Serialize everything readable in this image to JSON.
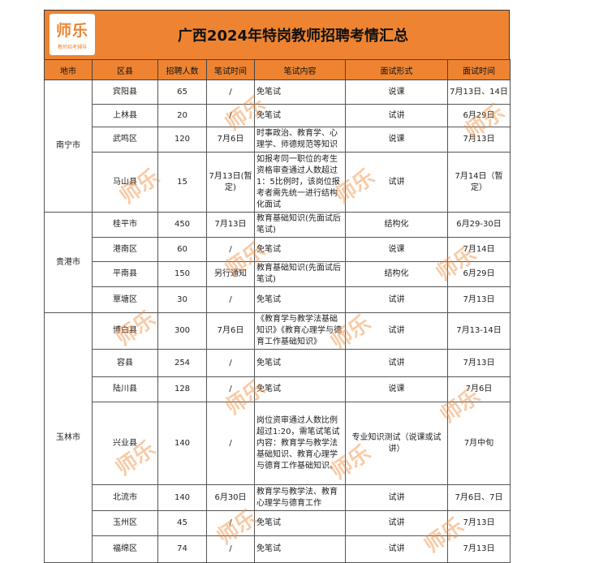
{
  "logo": {
    "name": "师乐",
    "tagline": "教师招考辅导"
  },
  "title": "广西2024年特岗教师招聘考情汇总",
  "headers": [
    "地市",
    "区县",
    "招聘人数",
    "笔试时间",
    "笔试内容",
    "面试形式",
    "面试时间"
  ],
  "watermark": "师乐",
  "accent": "#ee8431",
  "groups": [
    {
      "city": "南宁市",
      "rows": [
        [
          "宾阳县",
          "65",
          "/",
          "免笔试",
          "说课",
          "7月13日、14日"
        ],
        [
          "上林县",
          "20",
          "/",
          "免笔试",
          "试讲",
          "6月29日"
        ],
        [
          "武鸣区",
          "120",
          "7月6日",
          "时事政治、教育学、心理学、师德规范等知识",
          "说课",
          "7月13日"
        ],
        [
          "马山县",
          "15",
          "7月13日(暂定)",
          "如报考同一职位的考生资格审查通过人数超过1：5比例时，该岗位报考者需先统一进行结构化面试",
          "试讲",
          "7月14日（暂定）"
        ]
      ]
    },
    {
      "city": "贵港市",
      "rows": [
        [
          "桂平市",
          "450",
          "7月13日",
          "教育基础知识(先面试后笔试)",
          "结构化",
          "6月29-30日"
        ],
        [
          "港南区",
          "60",
          "/",
          "免笔试",
          "说课",
          "7月14日"
        ],
        [
          "平南县",
          "150",
          "另行通知",
          "教育基础知识(先面试后笔试)",
          "结构化",
          "6月29日"
        ],
        [
          "覃塘区",
          "30",
          "/",
          "免笔试",
          "试讲",
          "7月13日"
        ]
      ]
    },
    {
      "city": "玉林市",
      "rows": [
        [
          "博白县",
          "300",
          "7月6日",
          "《教育学与教学法基础知识》《教育心理学与德育工作基础知识》",
          "试讲",
          "7月13-14日"
        ],
        [
          "容县",
          "254",
          "/",
          "免笔试",
          "试讲",
          "7月13日"
        ],
        [
          "陆川县",
          "128",
          "/",
          "免笔试",
          "说课",
          "7月6日"
        ],
        [
          "兴业县",
          "140",
          "/",
          "岗位资审通过人数比例超过1:20，需笔试笔试内容：教育学与教学法基础知识、教育心理学与德育工作基础知识。",
          "专业知识测试（说课或试讲）",
          "7月中旬"
        ],
        [
          "北流市",
          "140",
          "6月30日",
          "教育学与教学法、教育心理学与德育工作",
          "试讲",
          "7月6日、7日"
        ],
        [
          "玉州区",
          "45",
          "/",
          "免笔试",
          "试讲",
          "7月13日"
        ],
        [
          "福绵区",
          "74",
          "/",
          "免笔试",
          "试讲",
          "7月13日"
        ]
      ]
    }
  ]
}
